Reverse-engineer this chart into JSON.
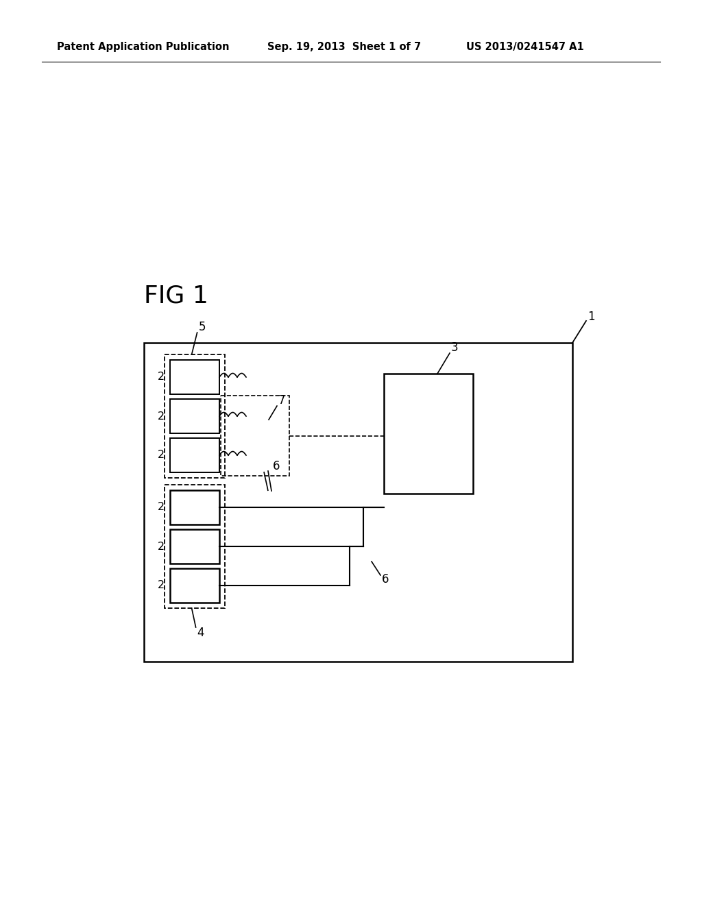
{
  "bg_color": "#ffffff",
  "header_left": "Patent Application Publication",
  "header_center": "Sep. 19, 2013  Sheet 1 of 7",
  "header_right": "US 2013/0241547 A1",
  "fig_label": "FIG 1",
  "label_1": "1",
  "label_2": "2",
  "label_3": "3",
  "label_4": "4",
  "label_5": "5",
  "label_6": "6",
  "label_7": "7"
}
